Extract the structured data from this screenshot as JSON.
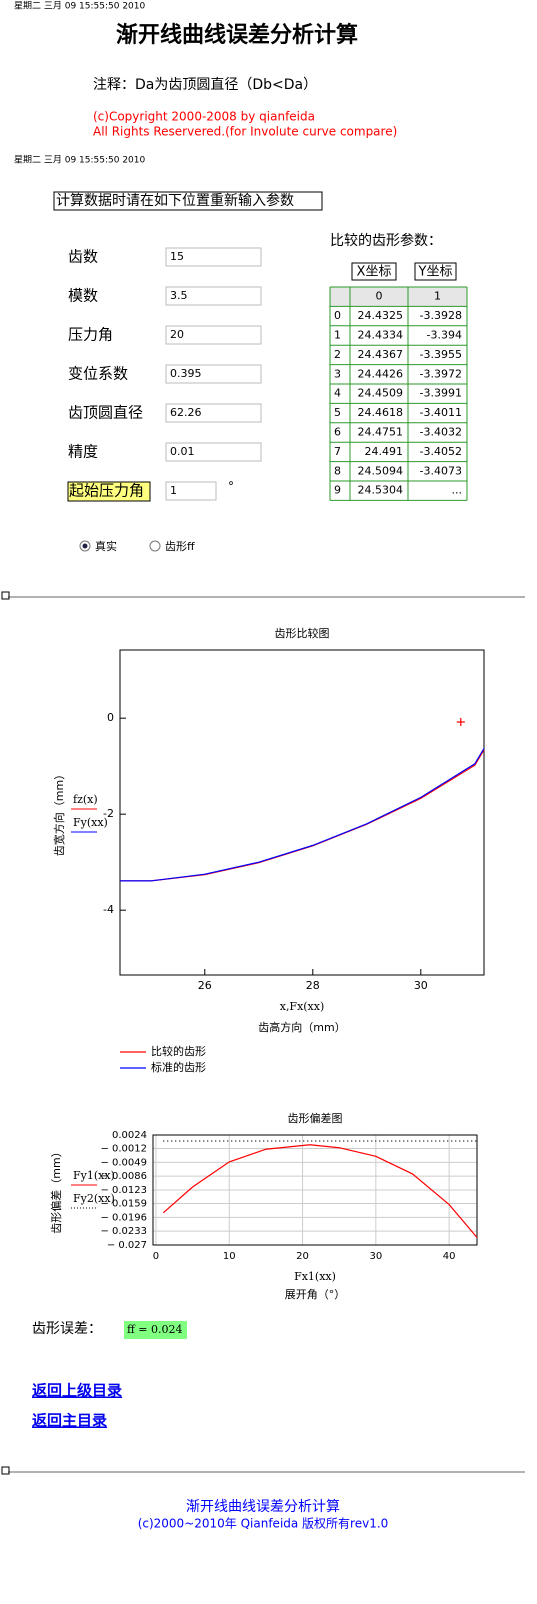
{
  "header": {
    "timestamp": "星期二 三月 09 15:55:50 2010",
    "title": "渐开线曲线误差分析计算",
    "note": "注释：Da为齿顶圆直径（Db<Da）",
    "copyright": [
      "(c)Copyright 2000-2008 by qianfeida",
      "All Rights Reservered.(for Involute curve compare)"
    ]
  },
  "inputs": {
    "timestamp": "星期二 三月 09 15:55:50 2010",
    "prompt": "计算数据时请在如下位置重新输入参数",
    "fields": [
      {
        "label": "齿数",
        "value": "15"
      },
      {
        "label": "模数",
        "value": "3.5"
      },
      {
        "label": "压力角",
        "value": "20"
      },
      {
        "label": "变位系数",
        "value": "0.395"
      },
      {
        "label": "齿顶圆直径",
        "value": "62.26"
      },
      {
        "label": "精度",
        "value": "0.01"
      }
    ],
    "start_angle": {
      "label": "起始压力角",
      "value": "1",
      "unit": "°"
    },
    "options": [
      "真实",
      "齿形ff"
    ],
    "selected": 0
  },
  "table": {
    "title": "比较的齿形参数：",
    "column_titles": [
      "X坐标",
      "Y坐标"
    ],
    "header": [
      "0",
      "1"
    ],
    "rows": [
      [
        "0",
        "24.4325",
        "-3.3928"
      ],
      [
        "1",
        "24.4334",
        "-3.394"
      ],
      [
        "2",
        "24.4367",
        "-3.3955"
      ],
      [
        "3",
        "24.4426",
        "-3.3972"
      ],
      [
        "4",
        "24.4509",
        "-3.3991"
      ],
      [
        "5",
        "24.4618",
        "-3.4011"
      ],
      [
        "6",
        "24.4751",
        "-3.4032"
      ],
      [
        "7",
        "24.491",
        "-3.4052"
      ],
      [
        "8",
        "24.5094",
        "-3.4073"
      ],
      [
        "9",
        "24.5304",
        "..."
      ]
    ]
  },
  "chart_data": [
    {
      "type": "line",
      "title": "齿形比较图",
      "x_label": "x,Fx(xx)",
      "x_title": "齿高方向（mm）",
      "y_label": "齿宽方向（mm）",
      "trace_labels": [
        "fz(x)",
        "Fy(xx)"
      ],
      "x": [
        24.43,
        25,
        26,
        27,
        28,
        29,
        30,
        31,
        31.17
      ],
      "series": [
        {
          "name": "比较的齿形",
          "color": "#ff0000",
          "values": [
            -3.39,
            -3.39,
            -3.26,
            -3.01,
            -2.66,
            -2.21,
            -1.67,
            -0.98,
            -0.66
          ]
        },
        {
          "name": "标准的齿形",
          "color": "#0000ff",
          "values": [
            -3.39,
            -3.39,
            -3.25,
            -3.0,
            -2.65,
            -2.2,
            -1.65,
            -0.95,
            -0.63
          ]
        }
      ],
      "points": [
        {
          "x": 30.74,
          "y": -0.08,
          "color": "#ff0000"
        }
      ],
      "xlim": [
        24.43,
        31.17
      ],
      "ylim": [
        -5.35,
        1.42
      ],
      "xticks": [
        26,
        28,
        30
      ],
      "yticks": [
        -4,
        -2,
        0
      ],
      "grid": false,
      "legend": "bottom-left"
    },
    {
      "type": "line",
      "title": "齿形偏差图",
      "x_label": "Fx1(xx)",
      "x_title": "展开角（°）",
      "y_label": "齿形偏差（mm）",
      "x": [
        1,
        5,
        10,
        15,
        21,
        25,
        30,
        35,
        40,
        43.8
      ],
      "series": [
        {
          "name": "Fy1(xx)",
          "color": "#ff0000",
          "values": [
            -0.0184,
            -0.0115,
            -0.0048,
            -0.0014,
            -0.0002,
            -0.001,
            -0.0033,
            -0.008,
            -0.0162,
            -0.025
          ]
        },
        {
          "name": "Fy2(xx)",
          "color": "#000000",
          "line_style": "dotted",
          "values": [
            0.0008,
            0.0008,
            0.0008,
            0.0008,
            0.0008,
            0.0008,
            0.0008,
            0.0008,
            0.0008,
            0.0008
          ]
        }
      ],
      "xlim": [
        -0.4,
        43.8
      ],
      "ylim": [
        -0.027,
        0.0024
      ],
      "xticks": [
        0,
        10,
        20,
        30,
        40
      ],
      "yticks": [
        {
          "value": 0.0024,
          "label": "0.0024"
        },
        {
          "value": -0.0012,
          "label": "− 0.0012"
        },
        {
          "value": -0.0049,
          "label": "− 0.0049"
        },
        {
          "value": -0.0086,
          "label": "− 0.0086"
        },
        {
          "value": -0.0123,
          "label": "− 0.0123"
        },
        {
          "value": -0.0159,
          "label": "− 0.0159"
        },
        {
          "value": -0.0196,
          "label": "− 0.0196"
        },
        {
          "value": -0.0233,
          "label": "− 0.0233"
        },
        {
          "value": -0.027,
          "label": "− 0.027"
        }
      ],
      "grid": true
    }
  ],
  "result": {
    "label": "齿形误差：",
    "value": "ff = 0.024"
  },
  "links": [
    "返回上级目录",
    "返回主目录"
  ],
  "footer": {
    "title": "渐开线曲线误差分析计算",
    "copyright": "(c)2000~2010年 Qianfeida 版权所有rev1.0"
  }
}
